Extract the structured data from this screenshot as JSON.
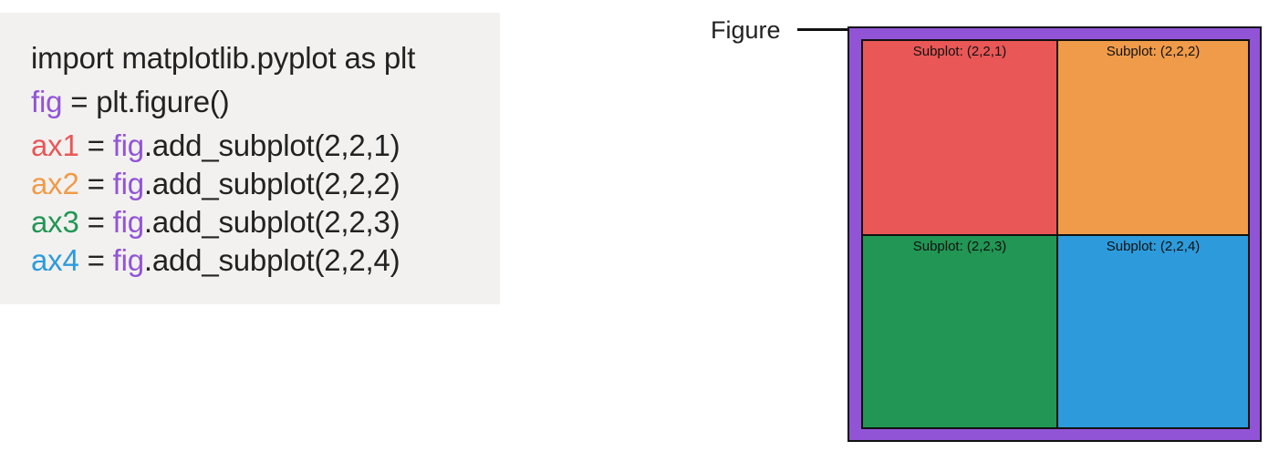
{
  "colors": {
    "text": "#222222",
    "fig": "#9254d6",
    "ax1": "#e95757",
    "ax2": "#f09b49",
    "ax3": "#229654",
    "ax4": "#2d9bdb",
    "code_background": "#f2f1f0"
  },
  "code": {
    "line_import": "import matplotlib.pyplot as plt",
    "fig_var": "fig",
    "fig_rest": " = plt.figure()",
    "lines": [
      {
        "var": "ax1",
        "eq": " = ",
        "obj": "fig",
        "rest": ".add_subplot(2,2,1)"
      },
      {
        "var": "ax2",
        "eq": " = ",
        "obj": "fig",
        "rest": ".add_subplot(2,2,2)"
      },
      {
        "var": "ax3",
        "eq": " = ",
        "obj": "fig",
        "rest": ".add_subplot(2,2,3)"
      },
      {
        "var": "ax4",
        "eq": " = ",
        "obj": "fig",
        "rest": ".add_subplot(2,2,4)"
      }
    ]
  },
  "diagram": {
    "figure_label": "Figure",
    "subplots": [
      {
        "label": "Subplot: (2,2,1)"
      },
      {
        "label": "Subplot: (2,2,2)"
      },
      {
        "label": "Subplot: (2,2,3)"
      },
      {
        "label": "Subplot: (2,2,4)"
      }
    ]
  }
}
